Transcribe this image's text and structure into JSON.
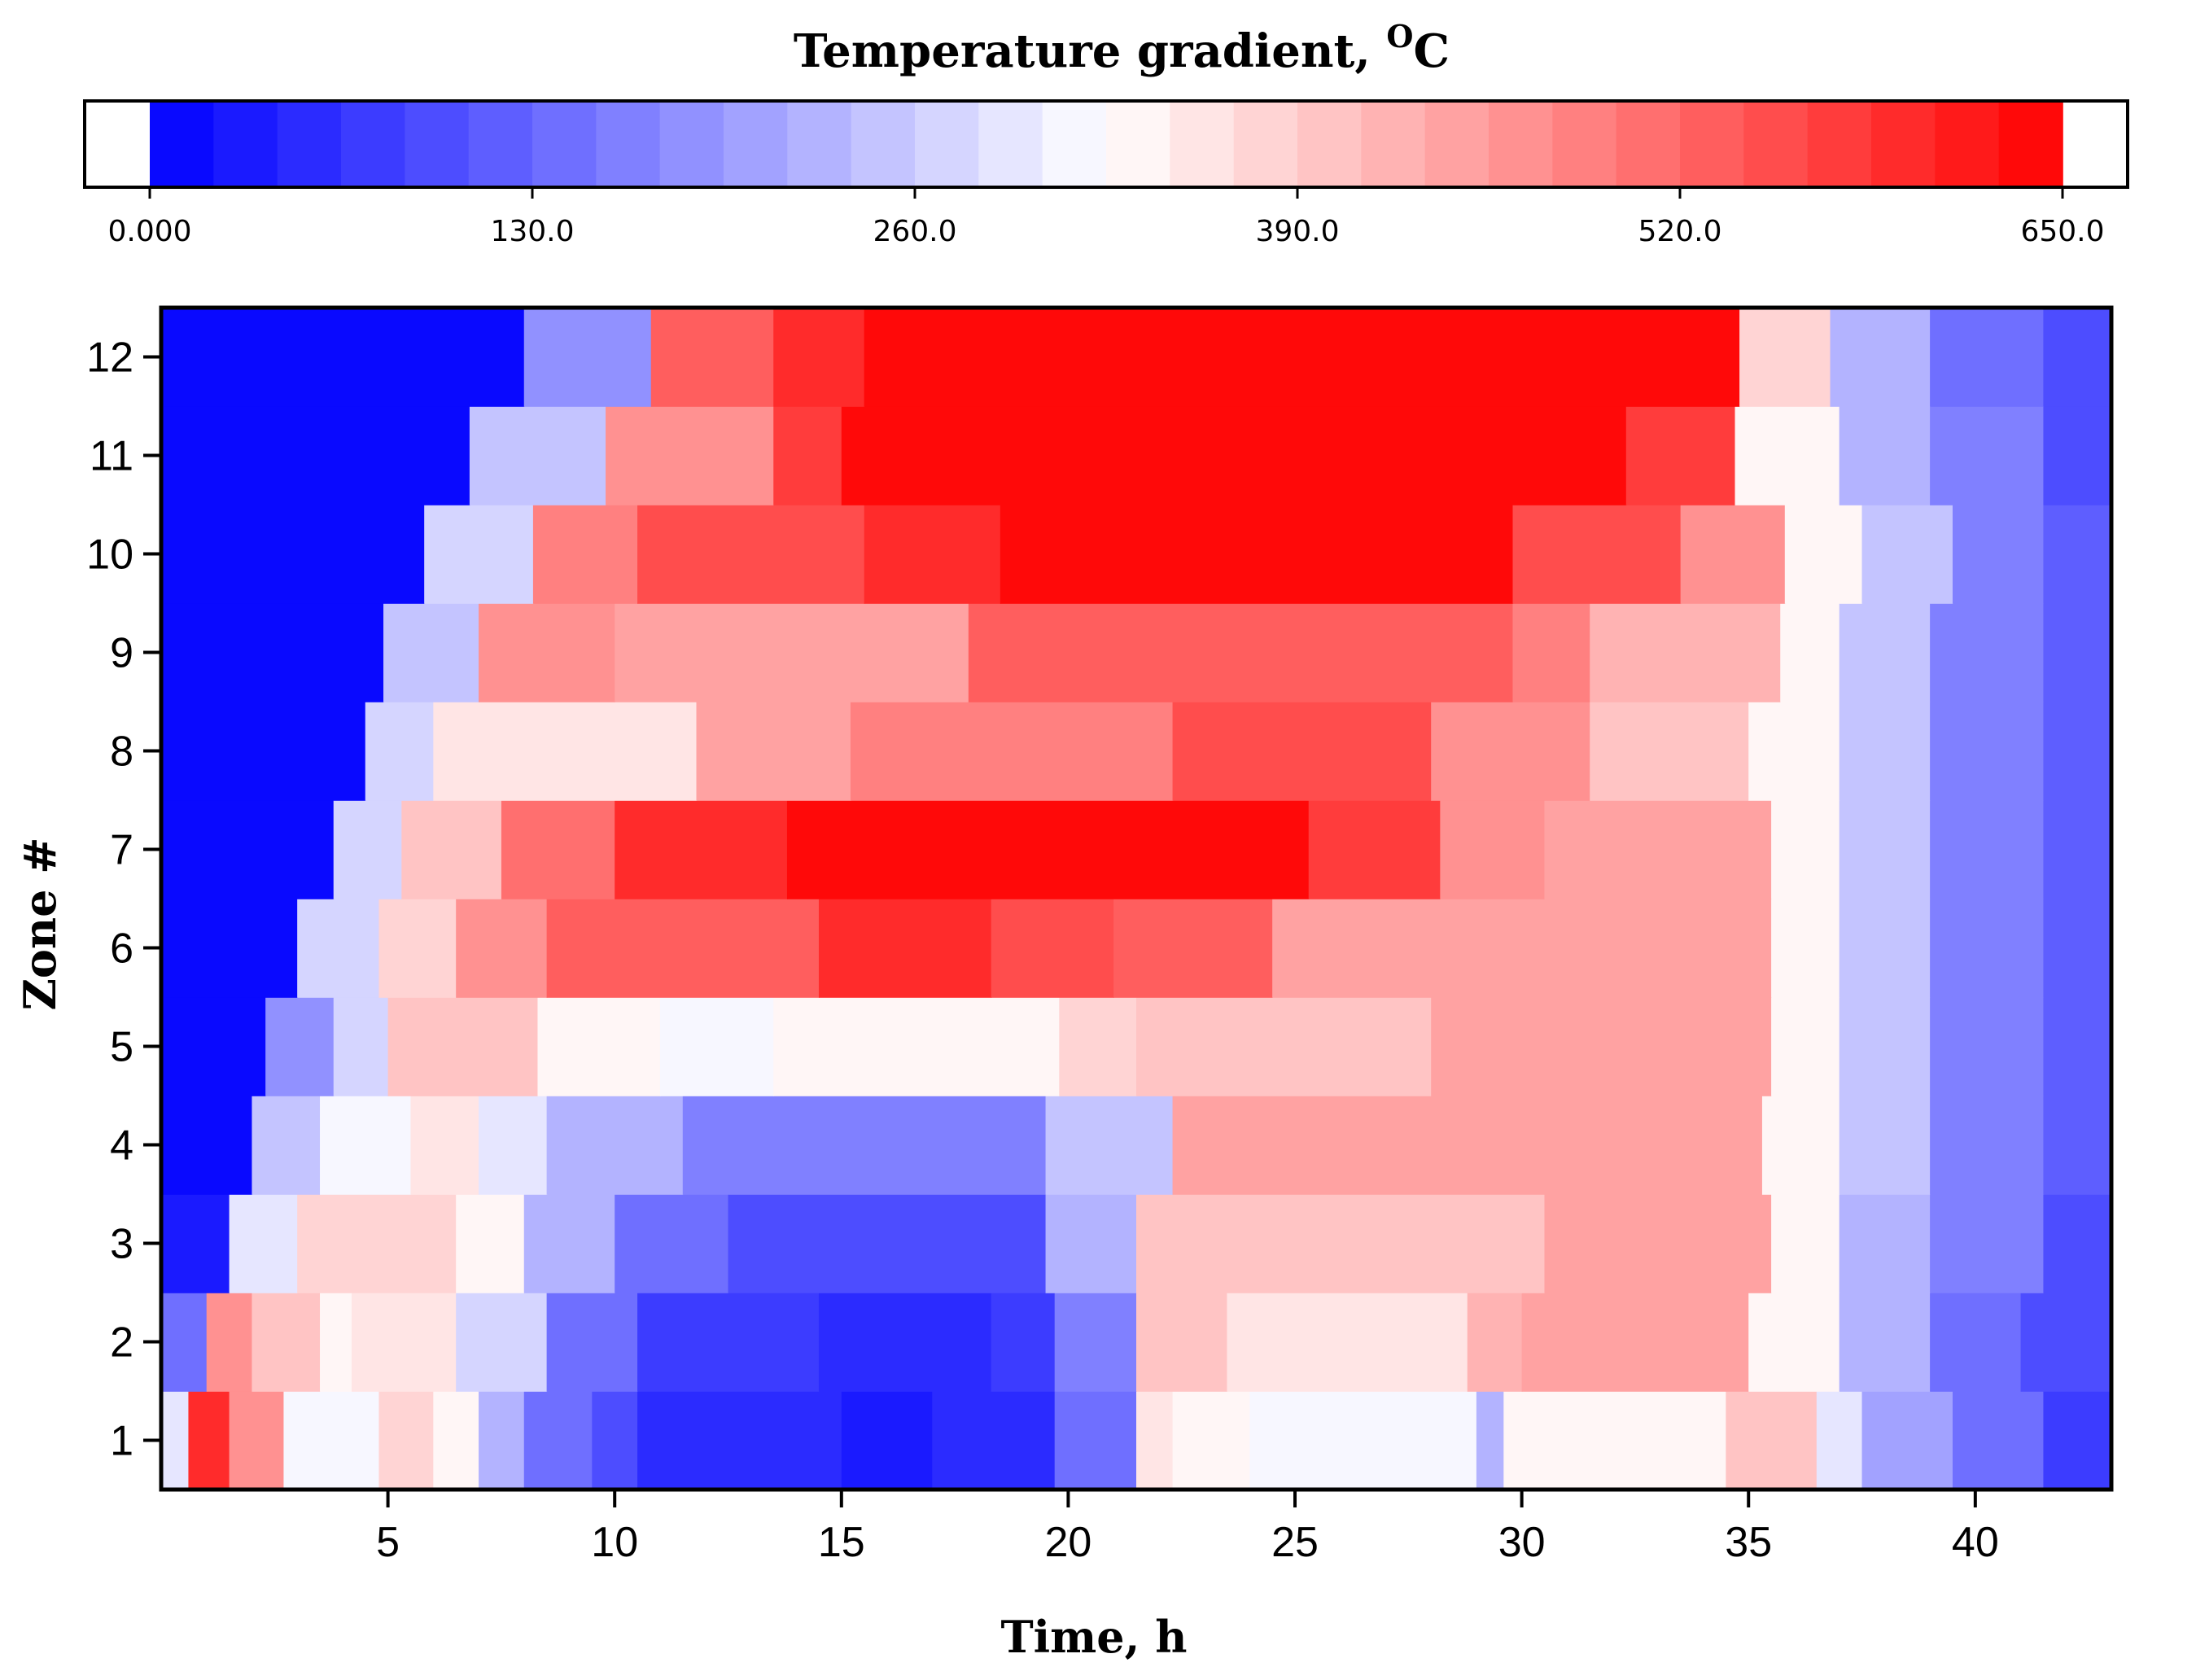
{
  "chart_data": {
    "type": "heatmap",
    "colorbar": {
      "title": "Temperature gradient, ",
      "title_unit_sup": "O",
      "title_unit": "C",
      "min": 0,
      "max": 650,
      "levels": 30,
      "tick_values": [
        0,
        130,
        260,
        390,
        520,
        650
      ],
      "tick_labels": [
        "0.000",
        "130.0",
        "260.0",
        "390.0",
        "520.0",
        "650.0"
      ],
      "colors": {
        "low": "#0000ff",
        "mid": "#ffffff",
        "high": "#ff0000"
      }
    },
    "xlabel": "Time, h",
    "ylabel": "Zone #",
    "xlim": [
      0,
      43
    ],
    "ylim": [
      0.5,
      12.5
    ],
    "x_ticks": [
      5,
      10,
      15,
      20,
      25,
      30,
      35,
      40
    ],
    "y_ticks": [
      1,
      2,
      3,
      4,
      5,
      6,
      7,
      8,
      9,
      10,
      11,
      12
    ],
    "zones": [
      {
        "zone": 1,
        "segments": [
          [
            0,
            0.6,
            300
          ],
          [
            0.6,
            1.5,
            600
          ],
          [
            1.5,
            2.7,
            470
          ],
          [
            2.7,
            4.8,
            310
          ],
          [
            4.8,
            6.0,
            380
          ],
          [
            6.0,
            7.0,
            330
          ],
          [
            7.0,
            8.0,
            230
          ],
          [
            8.0,
            9.5,
            150
          ],
          [
            9.5,
            10.5,
            95
          ],
          [
            10.5,
            15.0,
            55
          ],
          [
            15.0,
            17.0,
            35
          ],
          [
            17.0,
            19.7,
            60
          ],
          [
            19.7,
            21.5,
            140
          ],
          [
            21.5,
            22.3,
            350
          ],
          [
            22.3,
            24.0,
            330
          ],
          [
            24.0,
            29.0,
            305
          ],
          [
            29.0,
            29.6,
            230
          ],
          [
            29.6,
            30.6,
            330
          ],
          [
            30.6,
            34.5,
            335
          ],
          [
            34.5,
            36.5,
            410
          ],
          [
            36.5,
            37.5,
            300
          ],
          [
            37.5,
            39.5,
            200
          ],
          [
            39.5,
            41.5,
            130
          ],
          [
            41.5,
            43.0,
            70
          ]
        ]
      },
      {
        "zone": 2,
        "segments": [
          [
            0,
            1.0,
            140
          ],
          [
            1.0,
            2.0,
            460
          ],
          [
            2.0,
            3.5,
            400
          ],
          [
            3.5,
            4.2,
            330
          ],
          [
            4.2,
            6.5,
            360
          ],
          [
            6.5,
            8.5,
            280
          ],
          [
            8.5,
            10.5,
            150
          ],
          [
            10.5,
            14.5,
            70
          ],
          [
            14.5,
            18.3,
            45
          ],
          [
            18.3,
            19.7,
            70
          ],
          [
            19.7,
            21.5,
            160
          ],
          [
            21.5,
            23.5,
            400
          ],
          [
            23.5,
            28.8,
            360
          ],
          [
            28.8,
            30.0,
            430
          ],
          [
            30.0,
            35.0,
            440
          ],
          [
            35.0,
            37.0,
            330
          ],
          [
            37.0,
            39.0,
            230
          ],
          [
            39.0,
            41.0,
            150
          ],
          [
            41.0,
            43.0,
            90
          ]
        ]
      },
      {
        "zone": 3,
        "segments": [
          [
            0,
            1.5,
            40
          ],
          [
            1.5,
            3.0,
            300
          ],
          [
            3.0,
            6.5,
            370
          ],
          [
            6.5,
            8.0,
            330
          ],
          [
            8.0,
            10.0,
            230
          ],
          [
            10.0,
            12.5,
            150
          ],
          [
            12.5,
            19.5,
            90
          ],
          [
            19.5,
            21.5,
            220
          ],
          [
            21.5,
            30.5,
            410
          ],
          [
            30.5,
            35.5,
            435
          ],
          [
            35.5,
            37.0,
            330
          ],
          [
            37.0,
            39.0,
            230
          ],
          [
            39.0,
            41.5,
            160
          ],
          [
            41.5,
            43.0,
            100
          ]
        ]
      },
      {
        "zone": 4,
        "segments": [
          [
            0,
            2.0,
            0
          ],
          [
            2.0,
            3.5,
            255
          ],
          [
            3.5,
            5.5,
            320
          ],
          [
            5.5,
            7.0,
            350
          ],
          [
            7.0,
            8.5,
            300
          ],
          [
            8.5,
            11.5,
            220
          ],
          [
            11.5,
            19.5,
            170
          ],
          [
            19.5,
            22.3,
            250
          ],
          [
            22.3,
            35.3,
            435
          ],
          [
            35.3,
            37.0,
            330
          ],
          [
            37.0,
            39.0,
            240
          ],
          [
            39.0,
            41.5,
            170
          ],
          [
            41.5,
            43.0,
            110
          ]
        ]
      },
      {
        "zone": 5,
        "segments": [
          [
            0,
            2.3,
            0
          ],
          [
            2.3,
            3.8,
            180
          ],
          [
            3.8,
            5.0,
            280
          ],
          [
            5.0,
            8.3,
            395
          ],
          [
            8.3,
            11.0,
            335
          ],
          [
            11.0,
            13.5,
            310
          ],
          [
            13.5,
            19.8,
            335
          ],
          [
            19.8,
            21.5,
            370
          ],
          [
            21.5,
            28.0,
            410
          ],
          [
            28.0,
            35.5,
            435
          ],
          [
            35.5,
            37.0,
            330
          ],
          [
            37.0,
            39.0,
            240
          ],
          [
            39.0,
            41.5,
            170
          ],
          [
            41.5,
            43.0,
            110
          ]
        ]
      },
      {
        "zone": 6,
        "segments": [
          [
            0,
            3.0,
            0
          ],
          [
            3.0,
            4.8,
            270
          ],
          [
            4.8,
            6.5,
            370
          ],
          [
            6.5,
            8.5,
            470
          ],
          [
            8.5,
            14.5,
            540
          ],
          [
            14.5,
            18.3,
            590
          ],
          [
            18.3,
            21.0,
            560
          ],
          [
            21.0,
            24.5,
            520
          ],
          [
            24.5,
            28.3,
            450
          ],
          [
            28.3,
            35.5,
            435
          ],
          [
            35.5,
            37.0,
            330
          ],
          [
            37.0,
            39.0,
            240
          ],
          [
            39.0,
            41.5,
            170
          ],
          [
            41.5,
            43.0,
            110
          ]
        ]
      },
      {
        "zone": 7,
        "segments": [
          [
            0,
            3.8,
            0
          ],
          [
            3.8,
            5.3,
            280
          ],
          [
            5.3,
            7.5,
            400
          ],
          [
            7.5,
            10.0,
            500
          ],
          [
            10.0,
            13.8,
            585
          ],
          [
            13.8,
            25.3,
            630
          ],
          [
            25.3,
            28.2,
            570
          ],
          [
            28.2,
            30.5,
            470
          ],
          [
            30.5,
            35.5,
            435
          ],
          [
            35.5,
            37.0,
            330
          ],
          [
            37.0,
            39.0,
            240
          ],
          [
            39.0,
            41.5,
            170
          ],
          [
            41.5,
            43.0,
            110
          ]
        ]
      },
      {
        "zone": 8,
        "segments": [
          [
            0,
            4.5,
            0
          ],
          [
            4.5,
            6.0,
            280
          ],
          [
            6.0,
            11.8,
            360
          ],
          [
            11.8,
            15.2,
            450
          ],
          [
            15.2,
            22.3,
            480
          ],
          [
            22.3,
            28.0,
            550
          ],
          [
            28.0,
            31.5,
            470
          ],
          [
            31.5,
            35.0,
            405
          ],
          [
            35.0,
            37.0,
            330
          ],
          [
            37.0,
            39.0,
            240
          ],
          [
            39.0,
            41.5,
            170
          ],
          [
            41.5,
            43.0,
            110
          ]
        ]
      },
      {
        "zone": 9,
        "segments": [
          [
            0,
            4.9,
            0
          ],
          [
            4.9,
            7.0,
            250
          ],
          [
            7.0,
            10.0,
            470
          ],
          [
            10.0,
            17.8,
            440
          ],
          [
            17.8,
            29.8,
            525
          ],
          [
            29.8,
            31.5,
            480
          ],
          [
            31.5,
            35.7,
            420
          ],
          [
            35.7,
            37.0,
            330
          ],
          [
            37.0,
            39.0,
            240
          ],
          [
            39.0,
            41.5,
            170
          ],
          [
            41.5,
            43.0,
            110
          ]
        ]
      },
      {
        "zone": 10,
        "segments": [
          [
            0,
            5.8,
            0
          ],
          [
            5.8,
            8.2,
            260
          ],
          [
            8.2,
            10.5,
            480
          ],
          [
            10.5,
            15.5,
            545
          ],
          [
            15.5,
            18.5,
            595
          ],
          [
            18.5,
            29.8,
            630
          ],
          [
            29.8,
            33.5,
            560
          ],
          [
            33.5,
            35.8,
            455
          ],
          [
            35.8,
            37.5,
            330
          ],
          [
            37.5,
            39.5,
            240
          ],
          [
            39.5,
            41.5,
            170
          ],
          [
            41.5,
            43.0,
            110
          ]
        ]
      },
      {
        "zone": 11,
        "segments": [
          [
            0,
            6.8,
            0
          ],
          [
            6.8,
            9.8,
            250
          ],
          [
            9.8,
            13.5,
            470
          ],
          [
            13.5,
            15.0,
            580
          ],
          [
            15.0,
            32.3,
            630
          ],
          [
            32.3,
            34.7,
            570
          ],
          [
            34.7,
            37.0,
            330
          ],
          [
            37.0,
            39.0,
            230
          ],
          [
            39.0,
            41.5,
            160
          ],
          [
            41.5,
            43.0,
            100
          ]
        ]
      },
      {
        "zone": 12,
        "segments": [
          [
            0,
            8.0,
            0
          ],
          [
            8.0,
            10.8,
            180
          ],
          [
            10.8,
            13.5,
            540
          ],
          [
            13.5,
            15.5,
            590
          ],
          [
            15.5,
            34.8,
            630
          ],
          [
            34.8,
            36.8,
            380
          ],
          [
            36.8,
            39.0,
            220
          ],
          [
            39.0,
            41.5,
            150
          ],
          [
            41.5,
            43.0,
            90
          ]
        ]
      }
    ]
  }
}
